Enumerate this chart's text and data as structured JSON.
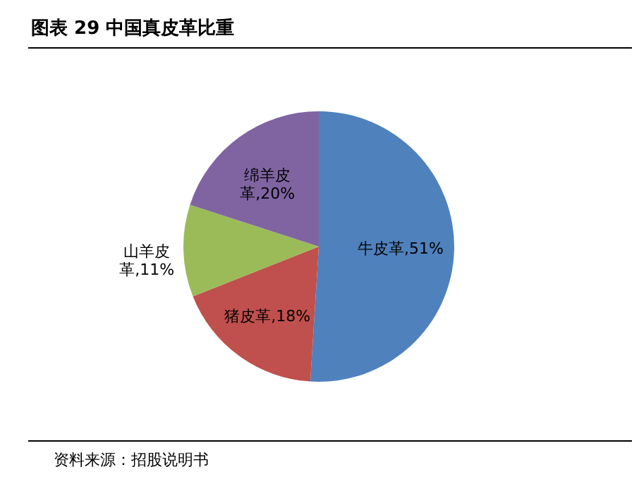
{
  "chart_data": {
    "type": "pie",
    "title": "图表 29 中国真皮革比重",
    "categories": [
      "牛皮革",
      "猪皮革",
      "山羊皮革",
      "绵羊皮革"
    ],
    "values": [
      51,
      18,
      11,
      20
    ],
    "value_labels": [
      "51%",
      "18%",
      "11%",
      "20%"
    ],
    "colors": [
      "#4f81bd",
      "#c0504d",
      "#9bbb59",
      "#8064a2"
    ],
    "annotations": [
      "资料来源：招股说明书"
    ]
  }
}
